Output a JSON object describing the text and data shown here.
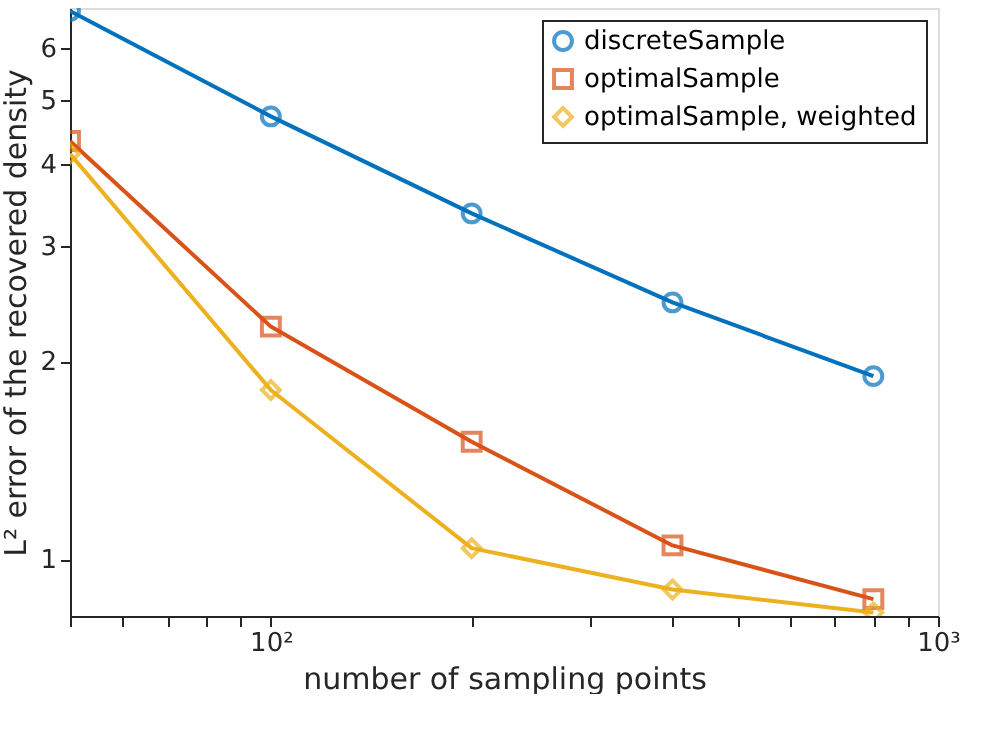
{
  "chart_data": {
    "type": "line",
    "xlabel": "number of sampling points",
    "ylabel": "L² error of the recovered density",
    "log": "xy",
    "grid": false,
    "legend": "top right",
    "line_style": "solid",
    "xlim": [
      50,
      1000
    ],
    "ylim": [
      0.82,
      6.9
    ],
    "xticks": [
      {
        "value": 50,
        "label": null
      },
      {
        "value": 60,
        "label": null
      },
      {
        "value": 70,
        "label": null
      },
      {
        "value": 80,
        "label": null
      },
      {
        "value": 90,
        "label": null
      },
      {
        "value": 100,
        "label": "10²"
      },
      {
        "value": 200,
        "label": null
      },
      {
        "value": 300,
        "label": null
      },
      {
        "value": 400,
        "label": null
      },
      {
        "value": 500,
        "label": null
      },
      {
        "value": 600,
        "label": null
      },
      {
        "value": 700,
        "label": null
      },
      {
        "value": 800,
        "label": null
      },
      {
        "value": 900,
        "label": null
      },
      {
        "value": 1000,
        "label": "10³"
      }
    ],
    "yticks": [
      1,
      2,
      3,
      4,
      5,
      6
    ],
    "x": [
      50,
      100,
      200,
      400,
      800
    ],
    "series": [
      {
        "name": "discreteSample",
        "color": "#0072bd",
        "marker": "circle",
        "values": [
          6.83,
          4.72,
          3.36,
          2.46,
          1.9
        ]
      },
      {
        "name": "optimalSample",
        "color": "#d95319",
        "marker": "square",
        "values": [
          4.33,
          2.26,
          1.51,
          1.05,
          0.87
        ]
      },
      {
        "name": "optimalSample, weighted",
        "color": "#edb120",
        "marker": "diamond",
        "values": [
          4.14,
          1.81,
          1.04,
          0.9,
          0.83
        ]
      }
    ]
  }
}
